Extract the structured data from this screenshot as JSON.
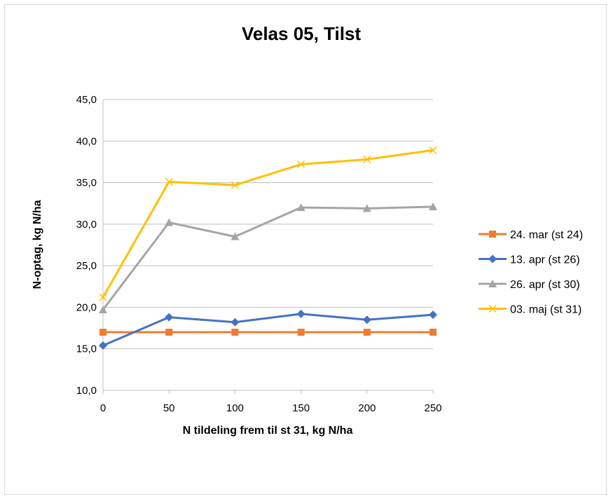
{
  "chart_data": {
    "type": "line",
    "title": "Velas 05, Tilst",
    "xlabel": "N tildeling frem til st 31, kg N/ha",
    "ylabel": "N-optag, kg N/ha",
    "x": [
      0,
      50,
      100,
      150,
      200,
      250
    ],
    "xticks": [
      "0",
      "50",
      "100",
      "150",
      "200",
      "250"
    ],
    "yticks": [
      "10,0",
      "15,0",
      "20,0",
      "25,0",
      "30,0",
      "35,0",
      "40,0",
      "45,0"
    ],
    "ylim": [
      10,
      45
    ],
    "grid": true,
    "legend": "right",
    "series": [
      {
        "name": "24. mar (st 24)",
        "color": "#ED7D31",
        "marker": "square",
        "values": [
          17.0,
          17.0,
          17.0,
          17.0,
          17.0,
          17.0
        ]
      },
      {
        "name": "13. apr (st 26)",
        "color": "#4472C4",
        "marker": "diamond",
        "values": [
          15.4,
          18.8,
          18.2,
          19.2,
          18.5,
          19.1
        ]
      },
      {
        "name": "26. apr (st 30)",
        "color": "#A5A5A5",
        "marker": "triangle",
        "values": [
          19.7,
          30.2,
          28.5,
          32.0,
          31.9,
          32.1
        ]
      },
      {
        "name": "03. maj (st 31)",
        "color": "#FFC000",
        "marker": "x",
        "values": [
          21.2,
          35.1,
          34.7,
          37.2,
          37.8,
          38.9
        ]
      }
    ]
  }
}
